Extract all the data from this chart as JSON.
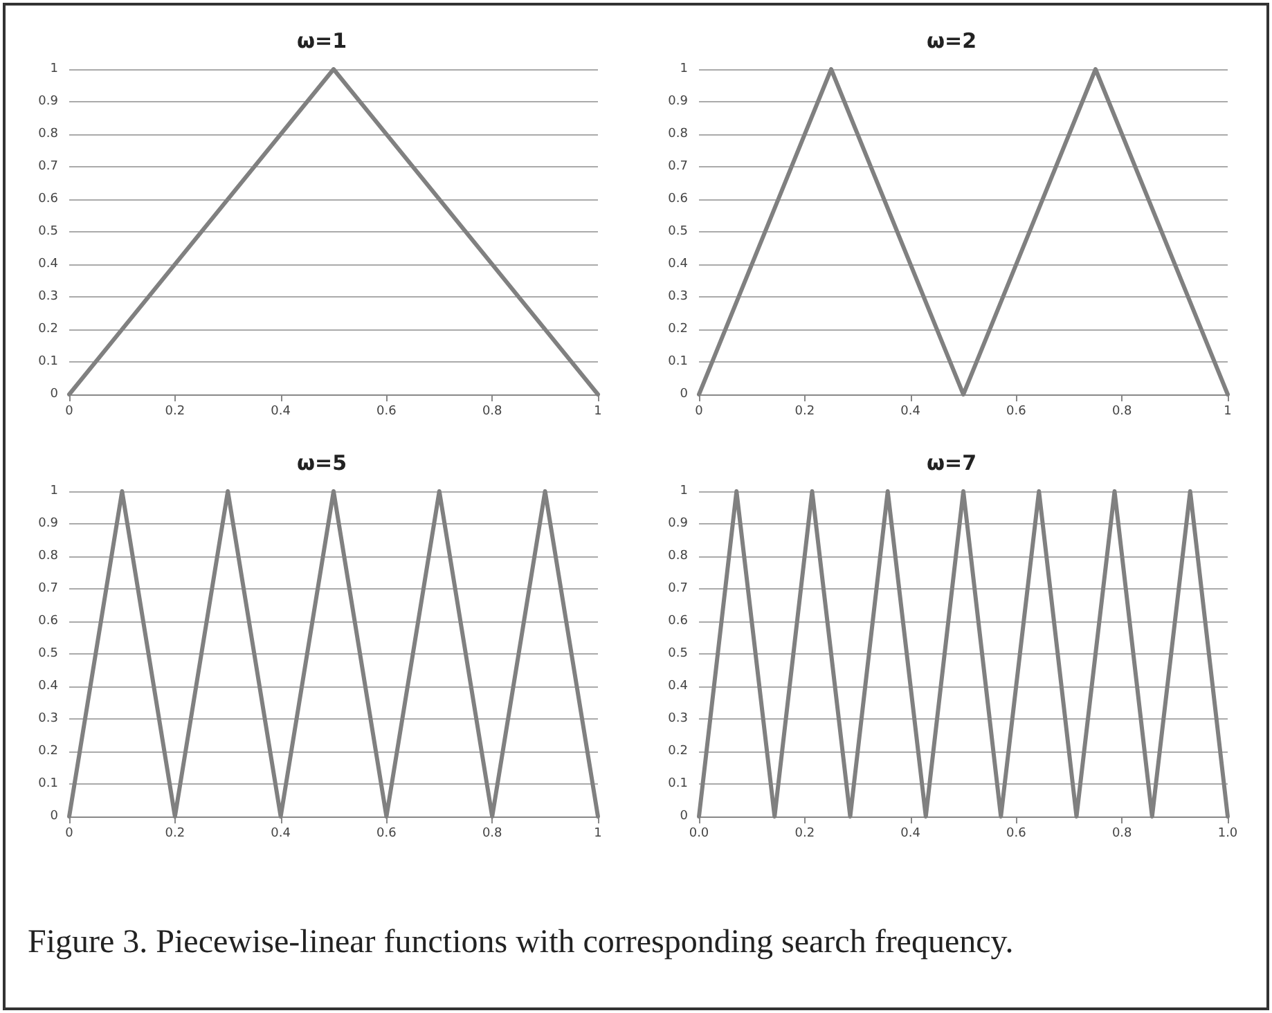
{
  "chart_data": [
    {
      "type": "line",
      "title": "ω=1",
      "x": [
        0,
        0.5,
        1
      ],
      "series": [
        {
          "color": "#808080",
          "values": [
            0,
            1,
            0
          ]
        }
      ],
      "xlim": [
        0,
        1
      ],
      "xticks": [
        0,
        0.2,
        0.4,
        0.6,
        0.8,
        1
      ],
      "ylim": [
        0,
        1
      ],
      "yticks": [
        0,
        0.1,
        0.2,
        0.3,
        0.4,
        0.5,
        0.6,
        0.7,
        0.8,
        0.9,
        1
      ],
      "grid": "y",
      "marker": "none",
      "line_style": "solid"
    },
    {
      "type": "line",
      "title": "ω=2",
      "x": [
        0,
        0.25,
        0.5,
        0.75,
        1
      ],
      "series": [
        {
          "color": "#808080",
          "values": [
            0,
            1,
            0,
            1,
            0
          ]
        }
      ],
      "xlim": [
        0,
        1
      ],
      "xticks": [
        0,
        0.2,
        0.4,
        0.6,
        0.8,
        1
      ],
      "ylim": [
        0,
        1
      ],
      "yticks": [
        0,
        0.1,
        0.2,
        0.3,
        0.4,
        0.5,
        0.6,
        0.7,
        0.8,
        0.9,
        1
      ],
      "grid": "y",
      "marker": "none",
      "line_style": "solid"
    },
    {
      "type": "line",
      "title": "ω=5",
      "x": [
        0,
        0.1,
        0.2,
        0.3,
        0.4,
        0.5,
        0.6,
        0.7,
        0.8,
        0.9,
        1
      ],
      "series": [
        {
          "color": "#808080",
          "values": [
            0,
            1,
            0,
            1,
            0,
            1,
            0,
            1,
            0,
            1,
            0
          ]
        }
      ],
      "xlim": [
        0,
        1
      ],
      "xticks": [
        0,
        0.2,
        0.4,
        0.6,
        0.8,
        1
      ],
      "ylim": [
        0,
        1
      ],
      "yticks": [
        0,
        0.1,
        0.2,
        0.3,
        0.4,
        0.5,
        0.6,
        0.7,
        0.8,
        0.9,
        1
      ],
      "grid": "y",
      "marker": "none",
      "line_style": "solid"
    },
    {
      "type": "line",
      "title": "ω=7",
      "x": [
        0,
        0.071,
        0.143,
        0.214,
        0.286,
        0.357,
        0.429,
        0.5,
        0.571,
        0.643,
        0.714,
        0.786,
        0.857,
        0.929,
        1
      ],
      "series": [
        {
          "color": "#808080",
          "values": [
            0,
            1,
            0,
            1,
            0,
            1,
            0,
            1,
            0,
            1,
            0,
            1,
            0,
            1,
            0
          ]
        }
      ],
      "xlim": [
        0,
        1
      ],
      "xticks": [
        {
          "value": 0,
          "label": "0.0"
        },
        0.2,
        0.4,
        0.6,
        0.8,
        {
          "value": 1,
          "label": "1.0"
        }
      ],
      "ylim": [
        0,
        1
      ],
      "yticks": [
        0,
        0.1,
        0.2,
        0.3,
        0.4,
        0.5,
        0.6,
        0.7,
        0.8,
        0.9,
        1
      ],
      "grid": "y",
      "marker": "none",
      "line_style": "solid",
      "annotations": [
        "Figure 3. Piecewise-linear functions with corresponding search frequency."
      ]
    }
  ]
}
